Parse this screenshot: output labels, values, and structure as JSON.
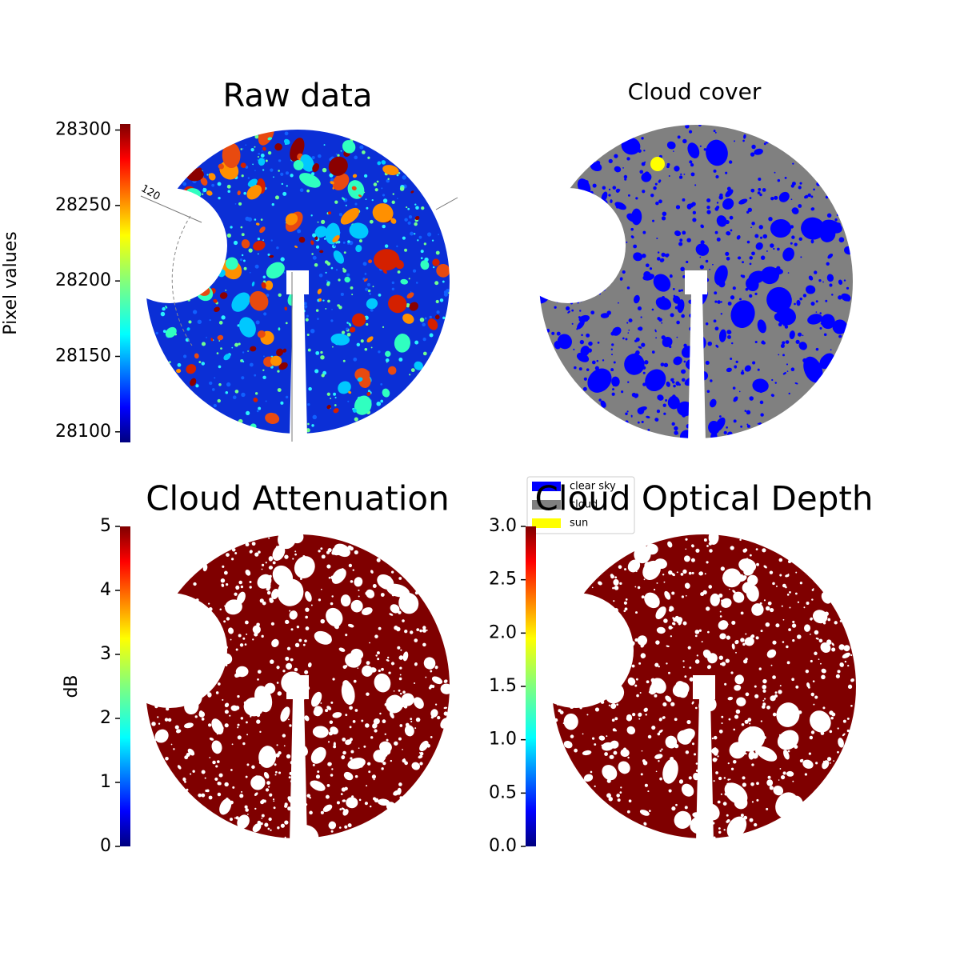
{
  "chart_data": [
    {
      "type": "image",
      "title": "Raw data",
      "annotation": "120",
      "colorbar": {
        "label": "Pixel values",
        "colormap": "jet",
        "lim": [
          28093,
          28304
        ],
        "ticks": [
          28100,
          28150,
          28200,
          28250,
          28300
        ]
      }
    },
    {
      "type": "image",
      "title": "Cloud cover",
      "legend": [
        {
          "name": "clear sky",
          "color": "#0000ff"
        },
        {
          "name": "cloud",
          "color": "#808080"
        },
        {
          "name": "sun",
          "color": "#ffff00"
        }
      ]
    },
    {
      "type": "image",
      "title": "Cloud Attenuation",
      "colorbar": {
        "label": "dB",
        "colormap": "jet",
        "lim": [
          0,
          5
        ],
        "ticks": [
          0,
          1,
          2,
          3,
          4,
          5
        ]
      }
    },
    {
      "type": "image",
      "title": "Cloud Optical Depth",
      "colorbar": {
        "colormap": "jet",
        "lim": [
          0,
          3
        ],
        "ticks": [
          {
            "value": 0,
            "label": "0.0"
          },
          0.5,
          {
            "value": 1,
            "label": "1.0"
          },
          1.5,
          {
            "value": 2,
            "label": "2.0"
          },
          2.5,
          {
            "value": 3,
            "label": "3.0"
          }
        ]
      }
    }
  ]
}
